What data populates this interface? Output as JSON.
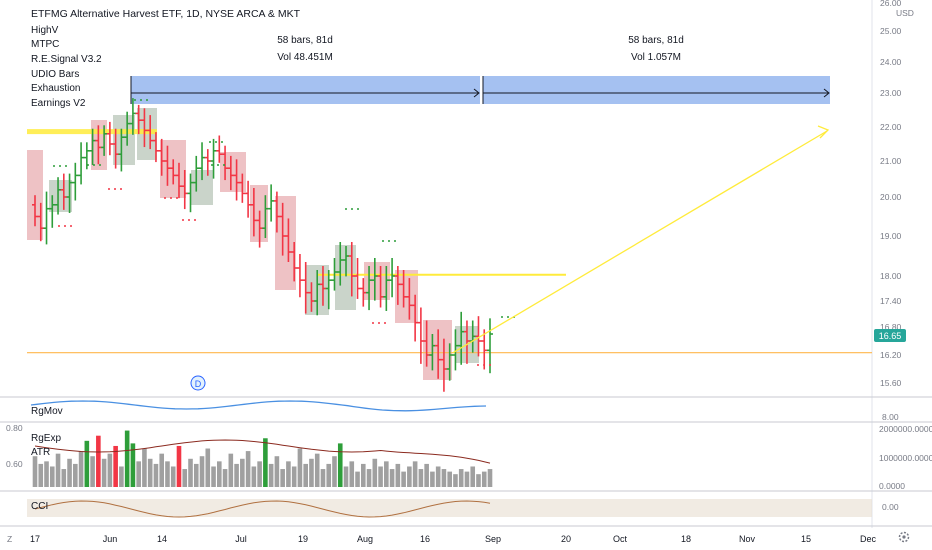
{
  "header": {
    "title": "ETFMG Alternative Harvest ETF, 1D, NYSE ARCA & MKT",
    "indicators": [
      "HighV",
      "MTPC",
      "R.E.Signal V3.2",
      "UDIO Bars",
      "Exhaustion",
      "Earnings V2"
    ]
  },
  "ranges": [
    {
      "bars_label": "58 bars, 81d",
      "vol_label": "Vol 48.451M"
    },
    {
      "bars_label": "58 bars, 81d",
      "vol_label": "Vol 1.057M"
    }
  ],
  "price_axis": {
    "currency": "USD",
    "ticks": [
      "26.00",
      "25.00",
      "24.00",
      "23.00",
      "22.00",
      "21.00",
      "20.00",
      "19.00",
      "18.00",
      "17.40",
      "16.80",
      "16.20",
      "15.60"
    ],
    "current_price": "16.65",
    "current_color": "#26a69a"
  },
  "earnings_marker": "D",
  "panes": {
    "rgmov": {
      "label": "RgMov",
      "axis_tick": "8.00"
    },
    "volume": {
      "labels": [
        "RgExp",
        "ATR"
      ],
      "left_ticks": [
        "0.80",
        "0.60"
      ],
      "right_ticks": [
        "2000000.0000",
        "1000000.0000",
        "0.0000"
      ]
    },
    "cci": {
      "label": "CCI",
      "axis_tick": "0.00"
    }
  },
  "time_axis": [
    "17",
    "Jun",
    "14",
    "Jul",
    "19",
    "Aug",
    "16",
    "Sep",
    "20",
    "Oct",
    "18",
    "Nov",
    "15",
    "Dec"
  ],
  "bottom_left_icon": "Z",
  "bottom_right_icon": "gear-icon",
  "colors": {
    "up": "#26a69a",
    "up_bright": "#2e9e3a",
    "down": "#f23645",
    "neutral": "#000000",
    "range_fill": "#5b8ee6",
    "level": "#ffeb3b",
    "support": "#ffb74d",
    "volume_gray": "#a0a0a0",
    "volume_red": "#f23645",
    "volume_green": "#2e9e3a"
  },
  "chart_data": {
    "type": "candlestick",
    "title": "ETFMG Alternative Harvest ETF, 1D, NYSE ARCA & MKT",
    "x_labels": [
      "17",
      "Jun",
      "14",
      "Jul",
      "19",
      "Aug",
      "16",
      "Sep",
      "20",
      "Oct",
      "18",
      "Nov",
      "15",
      "Dec"
    ],
    "ylim": [
      15.3,
      26.3
    ],
    "closes": [
      19.5,
      19.2,
      19.7,
      19.8,
      20.2,
      20.0,
      20.4,
      20.6,
      21.1,
      21.3,
      21.6,
      21.4,
      21.8,
      21.5,
      21.2,
      21.7,
      22.1,
      22.4,
      22.2,
      21.9,
      21.6,
      21.3,
      21.0,
      20.8,
      20.6,
      20.3,
      20.1,
      20.4,
      20.8,
      21.1,
      21.0,
      21.3,
      21.2,
      20.8,
      20.6,
      20.4,
      20.1,
      19.8,
      19.4,
      19.2,
      19.7,
      19.9,
      19.5,
      19.0,
      18.6,
      18.2,
      17.9,
      17.6,
      17.4,
      17.8,
      17.7,
      17.9,
      18.1,
      18.4,
      18.5,
      18.0,
      17.7,
      17.6,
      17.9,
      18.0,
      17.5,
      17.9,
      18.0,
      17.8,
      17.5,
      17.3,
      16.9,
      16.5,
      16.2,
      16.4,
      16.1,
      15.9,
      16.2,
      16.4,
      16.7,
      16.5,
      16.6,
      16.5,
      16.3,
      16.65
    ],
    "levels": [
      21.85,
      18.03,
      16.25
    ],
    "projection": {
      "from": 16.25,
      "to": 22.0
    },
    "volume": [
      1.2,
      0.9,
      1.0,
      0.8,
      1.3,
      0.7,
      1.1,
      0.9,
      1.4,
      1.8,
      1.2,
      2.0,
      1.1,
      1.3,
      1.6,
      0.8,
      2.2,
      1.7,
      1.0,
      1.5,
      1.1,
      0.9,
      1.3,
      1.0,
      0.8,
      1.6,
      0.7,
      1.1,
      0.9,
      1.2,
      1.5,
      0.8,
      1.0,
      0.7,
      1.3,
      0.9,
      1.1,
      1.4,
      0.8,
      1.0,
      1.9,
      0.9,
      1.2,
      0.7,
      1.0,
      0.8,
      1.5,
      0.9,
      1.1,
      1.3,
      0.7,
      0.9,
      1.2,
      1.7,
      0.8,
      1.0,
      0.6,
      0.9,
      0.7,
      1.1,
      0.8,
      1.0,
      0.7,
      0.9,
      0.6,
      0.8,
      1.0,
      0.7,
      0.9,
      0.6,
      0.8,
      0.7,
      0.6,
      0.5,
      0.7,
      0.6,
      0.8,
      0.5,
      0.6,
      0.7
    ],
    "volume_ylim": [
      0,
      2.3
    ],
    "volume_unit": "M"
  }
}
